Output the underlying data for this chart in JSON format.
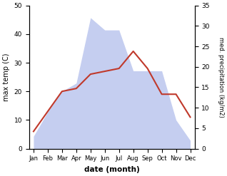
{
  "months": [
    "Jan",
    "Feb",
    "Mar",
    "Apr",
    "May",
    "Jun",
    "Jul",
    "Aug",
    "Sep",
    "Oct",
    "Nov",
    "Dec"
  ],
  "temperature": [
    6,
    13,
    20,
    21,
    26,
    27,
    28,
    34,
    28,
    19,
    19,
    11
  ],
  "precipitation": [
    3,
    9,
    14,
    16,
    32,
    29,
    29,
    19,
    19,
    19,
    7,
    2
  ],
  "temp_color": "#c0392b",
  "precip_fill_color": "#c5cef0",
  "ylabel_left": "max temp (C)",
  "ylabel_right": "med. precipitation (kg/m2)",
  "xlabel": "date (month)",
  "ylim_left": [
    0,
    50
  ],
  "ylim_right": [
    0,
    35
  ],
  "yticks_left": [
    0,
    10,
    20,
    30,
    40,
    50
  ],
  "yticks_right": [
    0,
    5,
    10,
    15,
    20,
    25,
    30,
    35
  ],
  "background_color": "#ffffff"
}
